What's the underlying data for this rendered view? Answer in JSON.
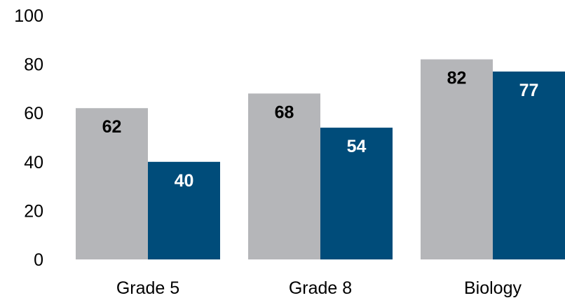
{
  "chart_data": {
    "type": "bar",
    "title": "",
    "xlabel": "",
    "ylabel": "",
    "ylim": [
      0,
      100
    ],
    "yticks": [
      "0",
      "20",
      "40",
      "60",
      "80",
      "100"
    ],
    "grid": false,
    "legend": "none",
    "categories": [
      "Grade 5",
      "Grade 8",
      "Biology"
    ],
    "series": [
      {
        "values": [
          62,
          68,
          82
        ],
        "color": "#b5b6b9",
        "label_color": "#000000"
      },
      {
        "values": [
          40,
          54,
          77
        ],
        "color": "#004c7a",
        "label_color": "#ffffff"
      }
    ]
  }
}
